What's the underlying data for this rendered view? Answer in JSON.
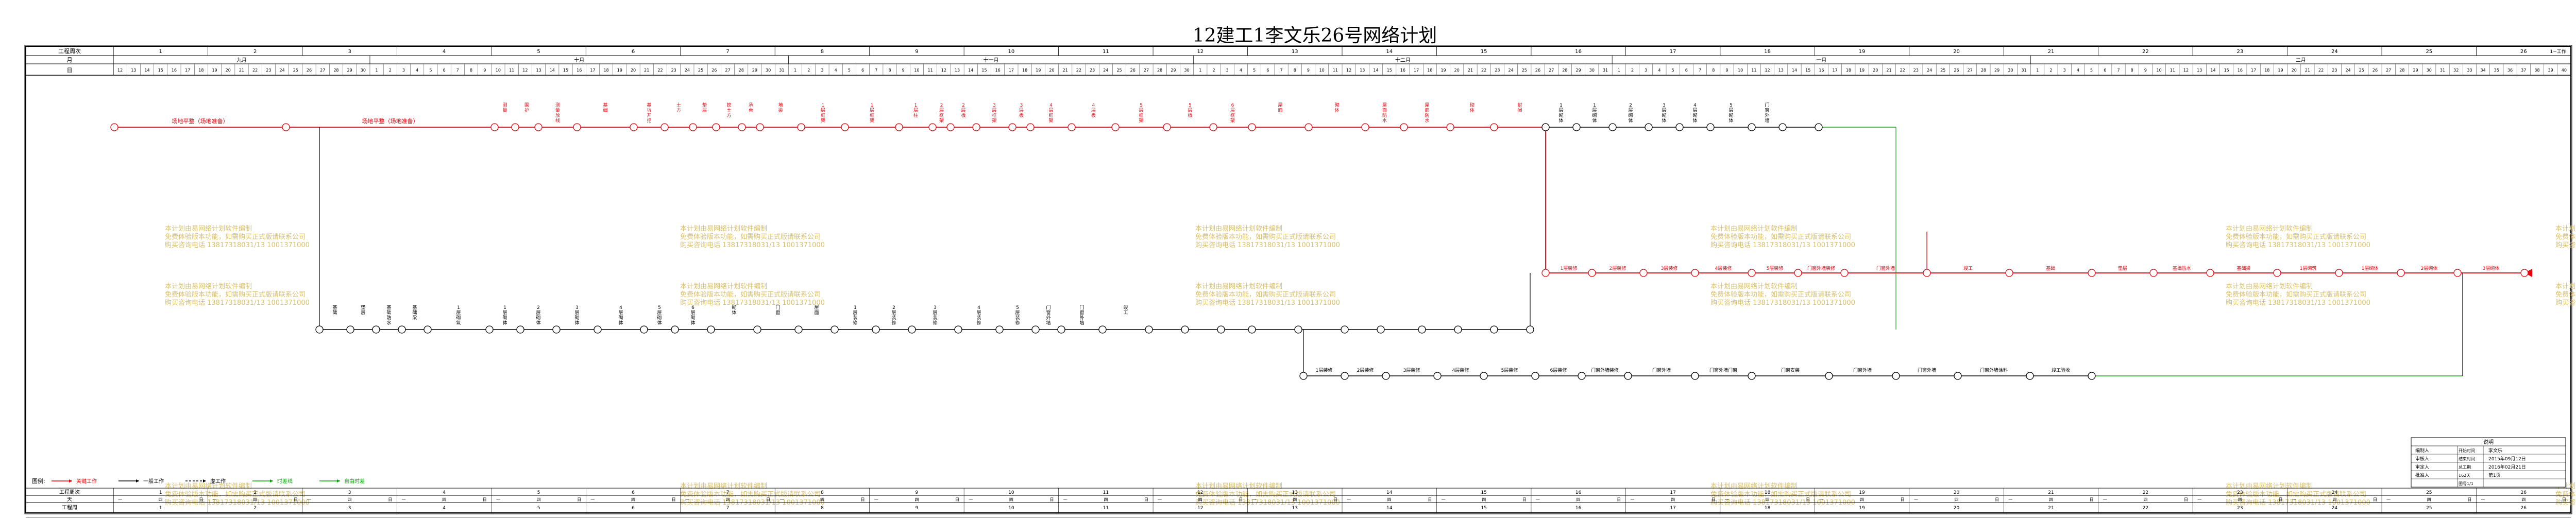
{
  "title": "12建工1李文乐26号网络计划",
  "header": {
    "row1_label": "工程周次",
    "row2_label": "月",
    "row3_label": "日",
    "months": [
      "九月",
      "十月",
      "十一月",
      "十二月",
      "一月",
      "二月"
    ],
    "week_numbers": [
      "1",
      "2",
      "3",
      "4",
      "5",
      "6",
      "7",
      "8",
      "9",
      "10",
      "11",
      "12",
      "13",
      "14",
      "15",
      "16",
      "17",
      "18",
      "19",
      "20",
      "21",
      "22",
      "23",
      "24",
      "25",
      "26"
    ],
    "end_week": "1~工作"
  },
  "footer": {
    "row1_label": "工程周次",
    "row2_label": "天",
    "row3_label": "工程周",
    "weekday_chars": [
      "一",
      "二",
      "三",
      "四",
      "五",
      "六",
      "日"
    ]
  },
  "legend": {
    "label": "图例:",
    "items": [
      {
        "text": "关键工作",
        "color": "#ff0000"
      },
      {
        "text": "一般工作",
        "color": "#000000"
      },
      {
        "text": "虚工作",
        "color": "#000000"
      },
      {
        "text": "时差线",
        "color": "#00aa00"
      },
      {
        "text": "自由时差",
        "color": "#00aa00"
      }
    ]
  },
  "watermark_lines": [
    "本计划由易网络计划软件编制",
    "免费体验版本功能，如需购买正式版请联系公司",
    "购买咨询电话 13817318031/13 1001371000"
  ],
  "network": {
    "critical_path_labels": [
      "场地平整（场地准备）",
      "场地平整（场地准备）",
      "测量",
      "围护",
      "测量放线",
      "基础",
      "基坑开挖",
      "土方",
      "垫层",
      "挖土方",
      "承台",
      "地梁",
      "1层框架",
      "1层框架",
      "1层柱",
      "2层框架",
      "2层板",
      "3层框架",
      "3层板",
      "4层框架",
      "4层板",
      "5层框架",
      "5层板",
      "6层框架",
      "屋面",
      "砌体",
      "屋面防水",
      "屋面防水",
      "砌体",
      "封闭"
    ],
    "upper_labels": [
      "1层砌体",
      "1层砌体",
      "2层砌体",
      "3层砌体",
      "4层砌体",
      "5层砌体",
      "门窗外墙"
    ],
    "middle_labels": [
      "基础",
      "垫层",
      "基础防水",
      "基础梁",
      "1层砌筑",
      "1层砌体",
      "2层砌体",
      "3层砌体",
      "4层砌体",
      "5层砌体",
      "6层砌体",
      "砌体",
      "门窗",
      "屋面",
      "1层装修",
      "2层装修",
      "3层装修",
      "4层装修",
      "5层装修",
      "门窗外墙装修",
      "门窗外墙",
      "竣工"
    ],
    "lower_labels": [
      "1层装修",
      "2层装修",
      "3层装修",
      "4层装修",
      "5层装修",
      "6层装修",
      "门窗外墙装修",
      "门窗外墙",
      "门窗外墙门窗",
      "门窗安装",
      "门窗外墙",
      "门窗外墙",
      "门窗外墙涂料",
      "竣工验收"
    ]
  },
  "info_table": {
    "heading": "说明",
    "rows": [
      {
        "label": "编制人",
        "value": "李文乐"
      },
      {
        "label": "审核人",
        "value": "2015年09月12日"
      },
      {
        "label": "审定人",
        "value": "2016年02月21日"
      },
      {
        "label": "批准人",
        "value": "第1页"
      }
    ],
    "extra": [
      "开始时间",
      "结束时间",
      "总工期",
      "162天",
      "图号1/1"
    ]
  }
}
